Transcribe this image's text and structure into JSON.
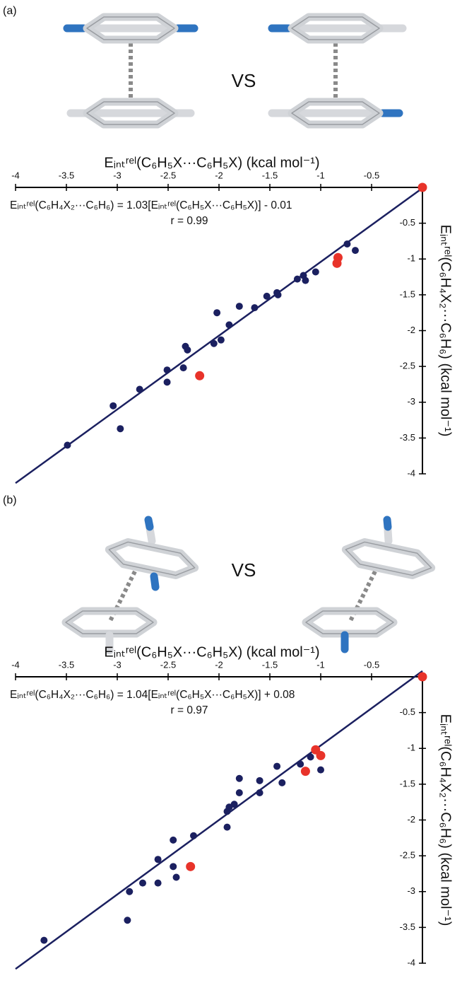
{
  "chart_data": [
    {
      "type": "scatter",
      "panel_label": "(a)",
      "comparison_label": "VS",
      "x_label": "Eᵢₙₜʳᵉˡ(C₆H₅X···C₆H₅X)  (kcal mol⁻¹)",
      "y_label": "Eᵢₙₜʳᵉˡ(C₆H₄X₂···C₆H₆)  (kcal mol⁻¹)",
      "equation": "Eᵢₙₜʳᵉˡ(C₆H₄X₂···C₆H₆) = 1.03[Eᵢₙₜʳᵉˡ(C₆H₅X···C₆H₅X)] - 0.01",
      "r_label": "r = 0.99",
      "fit": {
        "slope": 1.03,
        "intercept": -0.01,
        "color": "#1b2060"
      },
      "xlim": [
        -4,
        0
      ],
      "ylim": [
        -4,
        0
      ],
      "xticks": [
        -4,
        -3.5,
        -3,
        -2.5,
        -2,
        -1.5,
        -1,
        -0.5
      ],
      "yticks": [
        -4,
        -3.5,
        -3,
        -2.5,
        -2,
        -1.5,
        -1,
        -0.5
      ],
      "series": [
        {
          "color": "#1b2060",
          "x": [
            -3.49,
            -3.04,
            -2.97,
            -2.78,
            -2.51,
            -2.51,
            -2.35,
            -2.33,
            -2.31,
            -2.05,
            -1.98,
            -2.02,
            -1.9,
            -1.8,
            -1.65,
            -1.53,
            -1.43,
            -1.42,
            -1.23,
            -1.17,
            -1.15,
            -1.05,
            -0.74,
            -0.66
          ],
          "values": [
            -3.6,
            -3.05,
            -3.37,
            -2.82,
            -2.55,
            -2.72,
            -2.52,
            -2.22,
            -2.27,
            -2.18,
            -2.13,
            -1.75,
            -1.92,
            -1.66,
            -1.68,
            -1.52,
            -1.47,
            -1.5,
            -1.28,
            -1.23,
            -1.3,
            -1.18,
            -0.79,
            -0.88
          ]
        },
        {
          "color": "#e8332a",
          "x": [
            0,
            -0.83,
            -0.84,
            -2.19
          ],
          "values": [
            0,
            -0.98,
            -1.06,
            -2.63
          ]
        }
      ]
    },
    {
      "type": "scatter",
      "panel_label": "(b)",
      "comparison_label": "VS",
      "x_label": "Eᵢₙₜʳᵉˡ(C₆H₅X···C₆H₅X)  (kcal mol⁻¹)",
      "y_label": "Eᵢₙₜʳᵉˡ(C₆H₄X₂···C₆H₆)  (kcal mol⁻¹)",
      "equation": "Eᵢₙₜʳᵉˡ(C₆H₄X₂···C₆H₆) = 1.04[Eᵢₙₜʳᵉˡ(C₆H₅X···C₆H₅X)] + 0.08",
      "r_label": "r = 0.97",
      "fit": {
        "slope": 1.04,
        "intercept": 0.08,
        "color": "#1b2060"
      },
      "xlim": [
        -4,
        0
      ],
      "ylim": [
        -4,
        0
      ],
      "xticks": [
        -4,
        -3.5,
        -3,
        -2.5,
        -2,
        -1.5,
        -1,
        -0.5
      ],
      "yticks": [
        -4,
        -3.5,
        -3,
        -2.5,
        -2,
        -1.5,
        -1,
        -0.5
      ],
      "series": [
        {
          "color": "#1b2060",
          "x": [
            -3.72,
            -2.9,
            -2.88,
            -2.75,
            -2.6,
            -2.6,
            -2.45,
            -2.45,
            -2.42,
            -2.25,
            -1.92,
            -1.92,
            -1.9,
            -1.85,
            -1.8,
            -1.8,
            -1.6,
            -1.6,
            -1.43,
            -1.38,
            -1.2,
            -1.1,
            -1.0
          ],
          "values": [
            -3.68,
            -3.4,
            -3.0,
            -2.88,
            -2.88,
            -2.55,
            -2.28,
            -2.65,
            -2.8,
            -2.22,
            -2.1,
            -1.88,
            -1.82,
            -1.78,
            -1.42,
            -1.62,
            -1.62,
            -1.45,
            -1.25,
            -1.48,
            -1.22,
            -1.12,
            -1.3
          ]
        },
        {
          "color": "#e8332a",
          "x": [
            0,
            -1.05,
            -1.0,
            -1.15,
            -2.28
          ],
          "values": [
            0,
            -1.02,
            -1.1,
            -1.32,
            -2.65
          ]
        }
      ]
    }
  ]
}
